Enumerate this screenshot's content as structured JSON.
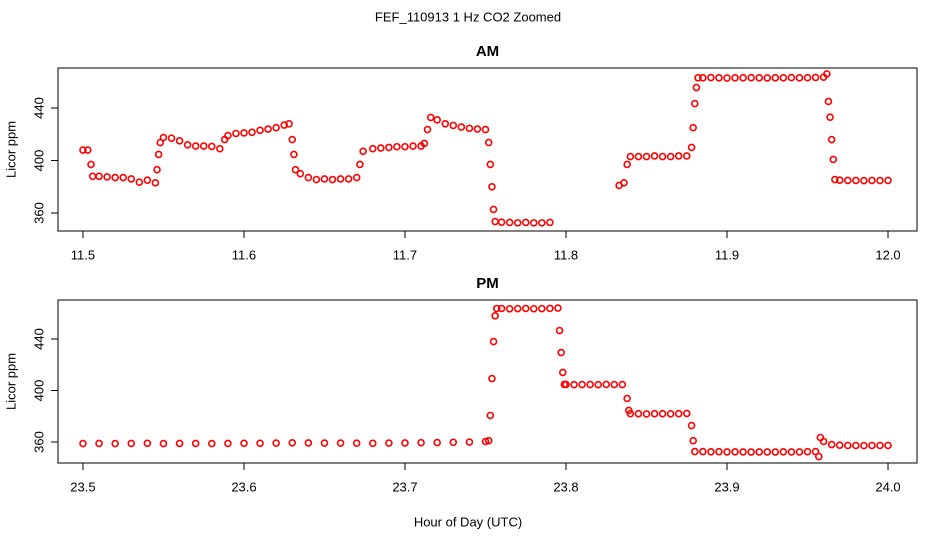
{
  "title": "FEF_110913  1 Hz CO2 Zoomed",
  "xlabel": "Hour of Day (UTC)",
  "chart_data": [
    {
      "type": "scatter",
      "title": "AM",
      "ylabel": "Licor ppm",
      "color": "#ff0000",
      "xlim": [
        11.4845,
        12.018
      ],
      "ylim": [
        346.3,
        470.5
      ],
      "xticks": [
        11.5,
        11.6,
        11.7,
        11.8,
        11.9,
        {
          "value": 12,
          "label": "12.0"
        }
      ],
      "yticks": [
        360,
        400,
        440
      ],
      "x": [
        11.5,
        11.503,
        11.505,
        11.506,
        11.51,
        11.515,
        11.52,
        11.525,
        11.53,
        11.535,
        11.54,
        11.545,
        11.546,
        11.547,
        11.548,
        11.55,
        11.555,
        11.56,
        11.565,
        11.57,
        11.575,
        11.58,
        11.585,
        11.588,
        11.59,
        11.595,
        11.6,
        11.605,
        11.61,
        11.615,
        11.62,
        11.625,
        11.628,
        11.63,
        11.631,
        11.632,
        11.635,
        11.64,
        11.645,
        11.65,
        11.655,
        11.66,
        11.665,
        11.67,
        11.672,
        11.674,
        11.68,
        11.685,
        11.69,
        11.695,
        11.7,
        11.705,
        11.71,
        11.712,
        11.714,
        11.716,
        11.72,
        11.725,
        11.73,
        11.735,
        11.74,
        11.745,
        11.75,
        11.752,
        11.753,
        11.754,
        11.755,
        11.756,
        11.76,
        11.765,
        11.77,
        11.775,
        11.78,
        11.785,
        11.79,
        11.833,
        11.836,
        11.838,
        11.84,
        11.845,
        11.85,
        11.855,
        11.86,
        11.865,
        11.87,
        11.875,
        11.878,
        11.879,
        11.88,
        11.881,
        11.882,
        11.885,
        11.89,
        11.895,
        11.9,
        11.905,
        11.91,
        11.915,
        11.92,
        11.925,
        11.93,
        11.935,
        11.94,
        11.945,
        11.95,
        11.955,
        11.96,
        11.962,
        11.963,
        11.964,
        11.965,
        11.966,
        11.967,
        11.97,
        11.975,
        11.98,
        11.985,
        11.99,
        11.995,
        12.0
      ],
      "values": [
        408,
        408,
        397,
        388,
        388,
        387.5,
        387,
        387,
        386,
        383.5,
        385,
        383,
        393,
        404.6,
        413.7,
        417.5,
        417,
        415,
        412,
        411,
        411,
        410.7,
        409,
        416,
        419,
        420.6,
        421,
        421.5,
        423,
        424,
        425,
        427,
        428,
        416,
        404.6,
        393,
        390,
        387,
        385.5,
        386,
        385.5,
        386,
        386,
        387,
        397,
        407,
        409,
        409.5,
        410,
        410.5,
        410.5,
        411,
        411,
        413,
        423.6,
        432.8,
        431,
        428,
        426.7,
        425.5,
        424.5,
        424,
        423.6,
        413.7,
        397,
        380,
        362.7,
        353.5,
        353,
        352.8,
        352.5,
        352.8,
        352.5,
        352.5,
        352.8,
        381,
        383,
        397,
        403,
        403,
        403,
        403.5,
        403,
        403,
        403.5,
        403.5,
        410,
        425,
        443.4,
        455.6,
        463,
        463,
        463.2,
        463,
        462.8,
        463,
        463,
        463.1,
        463,
        462.9,
        463,
        463,
        463.2,
        463,
        463.1,
        463.3,
        463.5,
        466,
        445,
        433,
        416,
        400.8,
        385.5,
        385,
        384.8,
        384.8,
        384.6,
        384.8,
        384.7,
        384.8
      ]
    },
    {
      "type": "scatter",
      "title": "PM",
      "ylabel": "Licor ppm",
      "color": "#ff0000",
      "xlim": [
        23.4845,
        24.018
      ],
      "ylim": [
        343.7,
        470.3
      ],
      "xticks": [
        23.5,
        23.6,
        23.7,
        23.8,
        23.9,
        {
          "value": 24,
          "label": "24.0"
        }
      ],
      "yticks": [
        360,
        400,
        440
      ],
      "x": [
        23.5,
        23.51,
        23.52,
        23.53,
        23.54,
        23.55,
        23.56,
        23.57,
        23.58,
        23.59,
        23.6,
        23.61,
        23.62,
        23.63,
        23.64,
        23.65,
        23.66,
        23.67,
        23.68,
        23.69,
        23.7,
        23.71,
        23.72,
        23.73,
        23.74,
        23.75,
        23.752,
        23.753,
        23.754,
        23.755,
        23.756,
        23.757,
        23.76,
        23.765,
        23.77,
        23.775,
        23.78,
        23.785,
        23.79,
        23.795,
        23.796,
        23.797,
        23.798,
        23.799,
        23.8,
        23.805,
        23.81,
        23.815,
        23.82,
        23.825,
        23.83,
        23.835,
        23.838,
        23.839,
        23.84,
        23.845,
        23.85,
        23.855,
        23.86,
        23.865,
        23.87,
        23.875,
        23.878,
        23.879,
        23.88,
        23.885,
        23.89,
        23.895,
        23.9,
        23.905,
        23.91,
        23.915,
        23.92,
        23.925,
        23.93,
        23.935,
        23.94,
        23.945,
        23.95,
        23.955,
        23.957,
        23.958,
        23.96,
        23.965,
        23.97,
        23.975,
        23.98,
        23.985,
        23.99,
        23.995,
        24.0
      ],
      "values": [
        358.8,
        358.9,
        358.8,
        358.9,
        359,
        358.8,
        358.9,
        358.9,
        358.8,
        358.9,
        359,
        359,
        359.2,
        359.4,
        359.3,
        359.2,
        359.2,
        359.1,
        359,
        359.2,
        359.3,
        359.5,
        359.6,
        359.8,
        360,
        360.4,
        361,
        380.6,
        409.3,
        438,
        458,
        463.7,
        463.7,
        463.5,
        463.6,
        463.7,
        463.5,
        463.6,
        463.8,
        464,
        446.6,
        429.5,
        414,
        404.7,
        404.7,
        404.5,
        404.6,
        404.6,
        404.5,
        404.7,
        404.6,
        404.6,
        393.8,
        384.5,
        382,
        382,
        381.8,
        382,
        382,
        381.9,
        382,
        382.2,
        372.8,
        361,
        352.6,
        352.6,
        352.4,
        352.5,
        352.3,
        352.4,
        352.3,
        352.2,
        352.3,
        352.3,
        352.2,
        352.4,
        352.3,
        352.3,
        352.5,
        352.6,
        348.7,
        363.5,
        360.4,
        358,
        357.5,
        357.3,
        357.3,
        357.2,
        357.3,
        357.3,
        357.3
      ]
    }
  ]
}
